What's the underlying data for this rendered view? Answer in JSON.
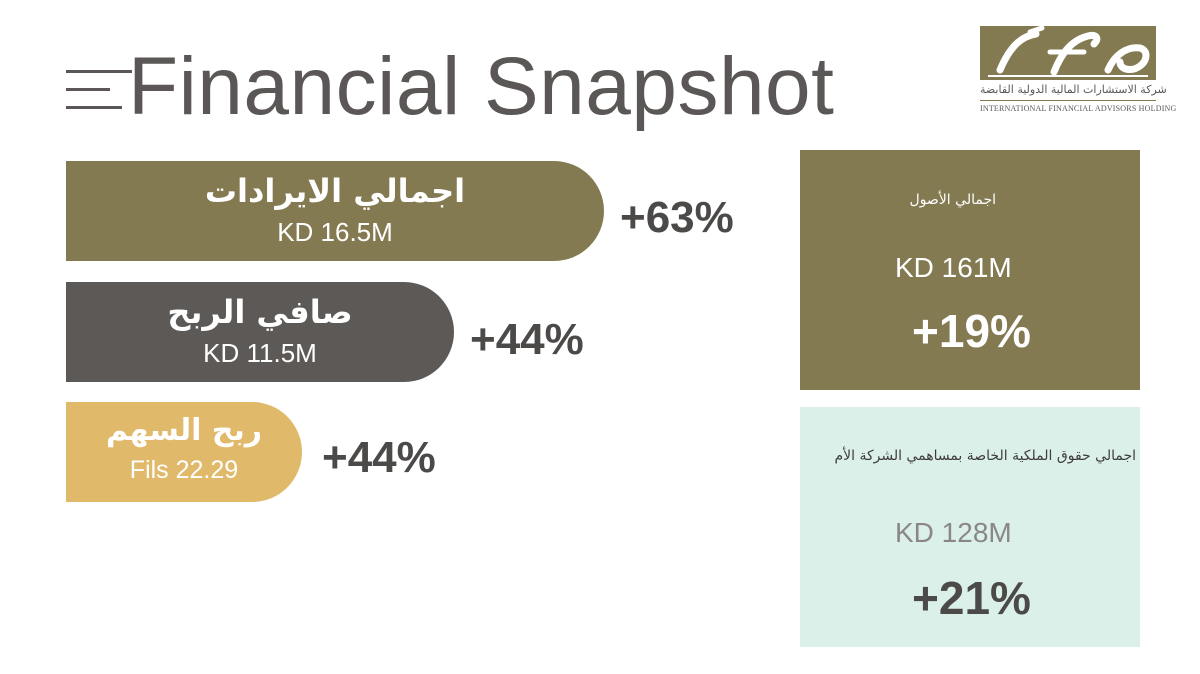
{
  "title": "Financial Snapshot",
  "logo": {
    "mark": "ifa",
    "arabic": "شركة الاستشارات المالية الدولية القابضة",
    "english": "INTERNATIONAL FINANCIAL ADVISORS HOLDING"
  },
  "metrics": [
    {
      "label": "اجمالي الايرادات",
      "value": "KD 16.5M",
      "change": "+63%"
    },
    {
      "label": "صافي الربح",
      "value": "KD 11.5M",
      "change": "+44%"
    },
    {
      "label": "ربح السهم",
      "value": "Fils 22.29",
      "change": "+44%"
    }
  ],
  "boxes": [
    {
      "label": "اجمالي الأصول",
      "value": "KD 161M",
      "change": "+19%"
    },
    {
      "label": "اجمالي حقوق الملكية الخاصة بمساهمي الشركة الأم",
      "value": "KD 128M",
      "change": "+21%"
    }
  ],
  "colors": {
    "gold": "#847a52",
    "charcoal": "#5c5957",
    "sand": "#e1b96a",
    "mint": "#dcf0ea"
  }
}
